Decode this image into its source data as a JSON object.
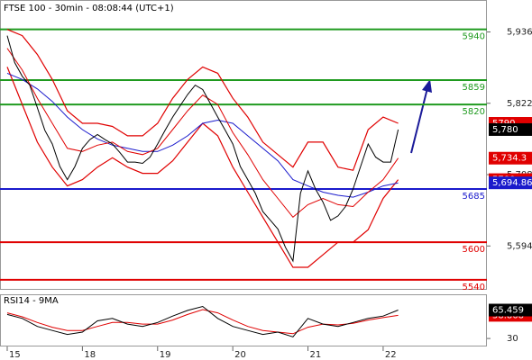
{
  "chart_data": [
    {
      "type": "line",
      "title": "FTSE 100 - 30min - 08:08:44 (UTC+1)",
      "xlim": [
        -0.096,
        6.38
      ],
      "ylim": [
        5524,
        5987
      ],
      "xticks": [
        {
          "value": 0,
          "label": "15"
        },
        {
          "value": 1,
          "label": "18"
        },
        {
          "value": 2,
          "label": "19"
        },
        {
          "value": 3,
          "label": "20"
        },
        {
          "value": 4,
          "label": "21"
        },
        {
          "value": 5,
          "label": "22"
        }
      ],
      "yticks": [
        {
          "value": 5936,
          "label": "5,936"
        },
        {
          "value": 5822,
          "label": "5,822"
        },
        {
          "value": 5708,
          "label": "5,708"
        },
        {
          "value": 5594,
          "label": "5,594"
        }
      ],
      "levels": [
        {
          "value": 5940,
          "color": "#1f9a1f"
        },
        {
          "value": 5859,
          "color": "#1f9a1f"
        },
        {
          "value": 5820,
          "color": "#1f9a1f"
        },
        {
          "value": 5685,
          "color": "#1a1acc"
        },
        {
          "value": 5600,
          "color": "#e00000"
        },
        {
          "value": 5540,
          "color": "#e00000"
        }
      ],
      "series": [
        {
          "color": "#e00000",
          "width": 1.2,
          "x": [
            0,
            0.2,
            0.4,
            0.6,
            0.8,
            1.0,
            1.2,
            1.4,
            1.6,
            1.8,
            2.0,
            2.2,
            2.4,
            2.6,
            2.8,
            3.0,
            3.2,
            3.4,
            3.6,
            3.8,
            4.0,
            4.2,
            4.4,
            4.6,
            4.8,
            5.0,
            5.2
          ],
          "values": [
            5940,
            5930,
            5900,
            5860,
            5810,
            5790,
            5790,
            5785,
            5770,
            5770,
            5790,
            5830,
            5860,
            5880,
            5870,
            5830,
            5800,
            5760,
            5740,
            5720,
            5760,
            5760,
            5720,
            5715,
            5780,
            5800,
            5790
          ]
        },
        {
          "color": "#e00000",
          "width": 1.2,
          "x": [
            0,
            0.2,
            0.4,
            0.6,
            0.8,
            1.0,
            1.2,
            1.4,
            1.6,
            1.8,
            2.0,
            2.2,
            2.4,
            2.6,
            2.8,
            3.0,
            3.2,
            3.4,
            3.6,
            3.8,
            4.0,
            4.2,
            4.4,
            4.6,
            4.8,
            5.0,
            5.2
          ],
          "values": [
            5880,
            5820,
            5760,
            5720,
            5690,
            5700,
            5720,
            5735,
            5720,
            5710,
            5710,
            5730,
            5760,
            5790,
            5770,
            5720,
            5680,
            5640,
            5600,
            5560,
            5560,
            5580,
            5600,
            5600,
            5620,
            5670,
            5700
          ]
        },
        {
          "color": "#1a1acc",
          "width": 1,
          "x": [
            0,
            0.2,
            0.4,
            0.6,
            0.8,
            1.0,
            1.2,
            1.4,
            1.6,
            1.8,
            2.0,
            2.2,
            2.4,
            2.6,
            2.8,
            3.0,
            3.2,
            3.4,
            3.6,
            3.8,
            4.0,
            4.2,
            4.4,
            4.6,
            4.8,
            5.0,
            5.2
          ],
          "values": [
            5870,
            5860,
            5845,
            5825,
            5800,
            5780,
            5765,
            5755,
            5750,
            5745,
            5745,
            5755,
            5770,
            5790,
            5795,
            5790,
            5770,
            5750,
            5730,
            5700,
            5690,
            5680,
            5675,
            5672,
            5680,
            5690,
            5694.86
          ],
          "value_labels": [
            null,
            null,
            null,
            null,
            null,
            null,
            null,
            null,
            null,
            null,
            null,
            null,
            null,
            null,
            null,
            null,
            null,
            null,
            null,
            null,
            null,
            null,
            null,
            null,
            null,
            null,
            "5,694.86"
          ]
        },
        {
          "color": "#e00000",
          "width": 1,
          "x": [
            0,
            0.2,
            0.4,
            0.6,
            0.8,
            1.0,
            1.2,
            1.4,
            1.6,
            1.8,
            2.0,
            2.2,
            2.4,
            2.6,
            2.8,
            3.0,
            3.2,
            3.4,
            3.6,
            3.8,
            4.0,
            4.2,
            4.4,
            4.6,
            4.8,
            5.0,
            5.2
          ],
          "values": [
            5910,
            5875,
            5830,
            5790,
            5750,
            5745,
            5755,
            5760,
            5745,
            5740,
            5750,
            5780,
            5810,
            5835,
            5820,
            5775,
            5740,
            5700,
            5670,
            5640,
            5660,
            5670,
            5660,
            5657,
            5680,
            5700,
            5734.3
          ],
          "value_labels": [
            null,
            null,
            null,
            null,
            null,
            null,
            null,
            null,
            null,
            null,
            null,
            null,
            null,
            null,
            null,
            null,
            null,
            null,
            null,
            null,
            null,
            null,
            null,
            null,
            null,
            null,
            "5,734.3"
          ]
        },
        {
          "color": "#000000",
          "width": 1,
          "x": [
            0,
            0.1,
            0.2,
            0.3,
            0.4,
            0.5,
            0.6,
            0.7,
            0.8,
            0.9,
            1.0,
            1.1,
            1.2,
            1.3,
            1.4,
            1.5,
            1.6,
            1.7,
            1.8,
            1.9,
            2.0,
            2.1,
            2.2,
            2.3,
            2.4,
            2.5,
            2.6,
            2.7,
            2.8,
            2.9,
            3.0,
            3.1,
            3.2,
            3.3,
            3.4,
            3.5,
            3.6,
            3.7,
            3.8,
            3.9,
            4.0,
            4.1,
            4.2,
            4.3,
            4.4,
            4.5,
            4.6,
            4.7,
            4.8,
            4.9,
            5.0,
            5.1,
            5.2
          ],
          "values": [
            5930,
            5887,
            5865,
            5851,
            5815,
            5779,
            5757,
            5721,
            5700,
            5721,
            5750,
            5764,
            5772,
            5764,
            5757,
            5743,
            5728,
            5728,
            5726,
            5736,
            5757,
            5779,
            5800,
            5818,
            5836,
            5851,
            5844,
            5822,
            5800,
            5779,
            5757,
            5721,
            5700,
            5678,
            5649,
            5635,
            5621,
            5592,
            5570,
            5678,
            5714,
            5685,
            5664,
            5635,
            5642,
            5657,
            5685,
            5721,
            5757,
            5736,
            5728,
            5728,
            5780
          ],
          "value_labels": [
            null,
            null,
            null,
            null,
            null,
            null,
            null,
            null,
            null,
            null,
            null,
            null,
            null,
            null,
            null,
            null,
            null,
            null,
            null,
            null,
            null,
            null,
            null,
            null,
            null,
            null,
            null,
            null,
            null,
            null,
            null,
            null,
            null,
            null,
            null,
            null,
            null,
            null,
            null,
            null,
            null,
            null,
            null,
            null,
            null,
            null,
            null,
            null,
            null,
            null,
            null,
            null,
            "5,780"
          ]
        }
      ]
    },
    {
      "type": "line",
      "title": "RSI14 - 9MA",
      "xlim": [
        -0.096,
        6.38
      ],
      "ylim": [
        20,
        84
      ],
      "yticks": [
        30
      ],
      "series": [
        {
          "color": "#e00000",
          "width": 1,
          "x": [
            0,
            0.2,
            0.4,
            0.6,
            0.8,
            1.0,
            1.2,
            1.4,
            1.6,
            1.8,
            2.0,
            2.2,
            2.4,
            2.6,
            2.8,
            3.0,
            3.2,
            3.4,
            3.6,
            3.8,
            4.0,
            4.2,
            4.4,
            4.6,
            4.8,
            5.0,
            5.2
          ],
          "values": [
            62,
            57,
            50,
            44,
            40,
            40,
            45,
            50,
            50,
            48,
            48,
            53,
            60,
            66,
            62,
            53,
            45,
            40,
            38,
            36,
            44,
            48,
            47,
            49,
            53,
            56,
            58.868
          ]
        },
        {
          "color": "#000000",
          "width": 1,
          "x": [
            0,
            0.2,
            0.4,
            0.6,
            0.8,
            1.0,
            1.2,
            1.4,
            1.6,
            1.8,
            2.0,
            2.2,
            2.4,
            2.6,
            2.8,
            3.0,
            3.2,
            3.4,
            3.6,
            3.8,
            4.0,
            4.2,
            4.4,
            4.6,
            4.8,
            5.0,
            5.2
          ],
          "values": [
            60,
            55,
            45,
            40,
            35,
            38,
            52,
            55,
            48,
            45,
            50,
            58,
            65,
            70,
            55,
            45,
            40,
            35,
            38,
            32,
            55,
            48,
            45,
            50,
            55,
            58,
            65.459
          ]
        }
      ]
    }
  ]
}
